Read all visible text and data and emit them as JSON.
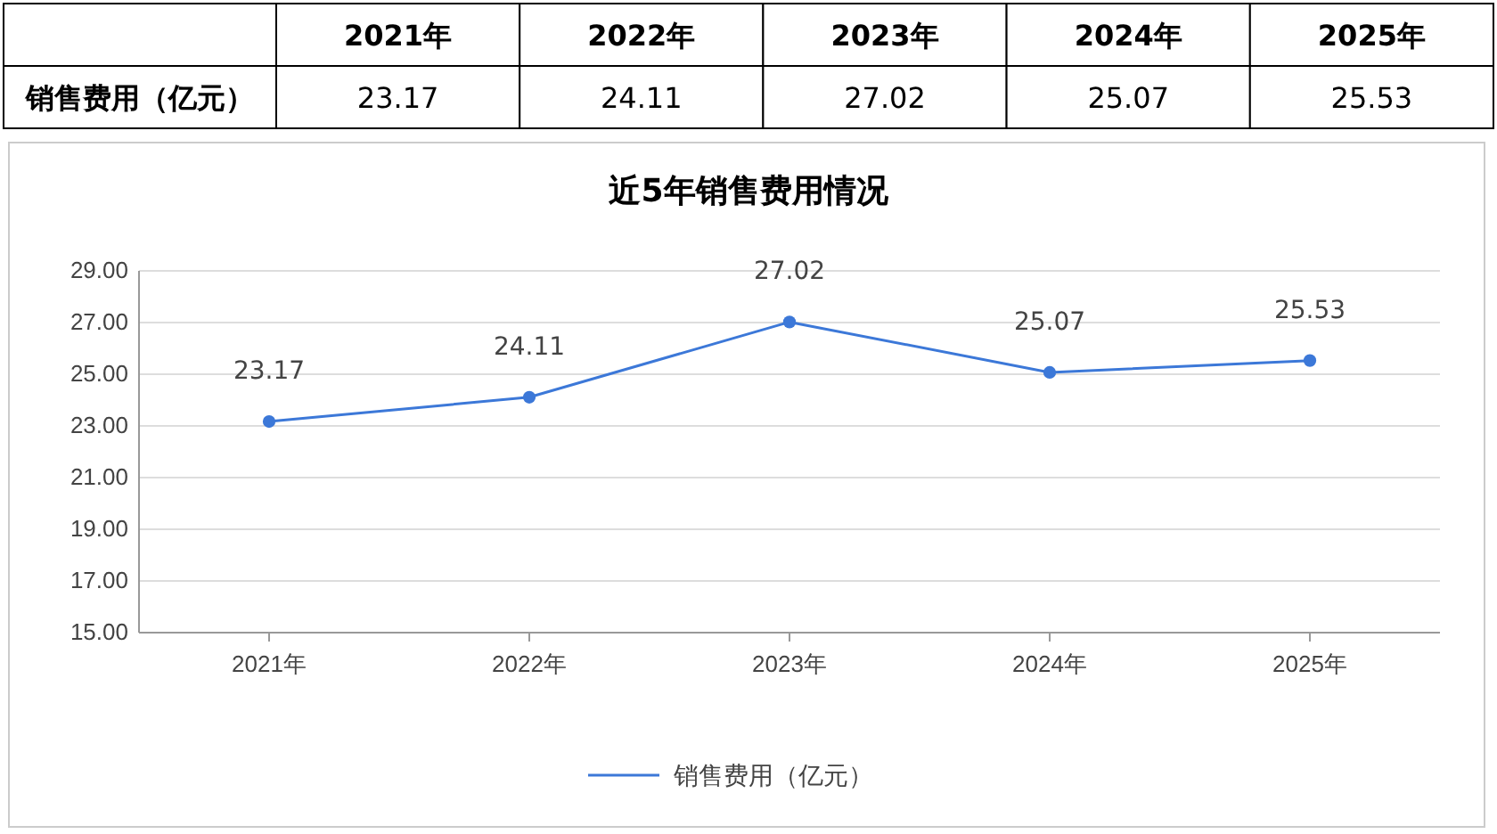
{
  "chart_data": {
    "type": "line",
    "title": "近5年销售费用情况",
    "categories": [
      "2021年",
      "2022年",
      "2023年",
      "2024年",
      "2025年"
    ],
    "series": [
      {
        "name": "销售费用（亿元）",
        "color": "#3c78d8",
        "values": [
          23.17,
          24.11,
          27.02,
          25.07,
          25.53
        ]
      }
    ],
    "ylim": [
      15,
      29
    ],
    "yticks": [
      {
        "value": 15,
        "label": "15.00"
      },
      {
        "value": 17,
        "label": "17.00"
      },
      {
        "value": 19,
        "label": "19.00"
      },
      {
        "value": 21,
        "label": "21.00"
      },
      {
        "value": 23,
        "label": "23.00"
      },
      {
        "value": 25,
        "label": "25.00"
      },
      {
        "value": 27,
        "label": "27.00"
      },
      {
        "value": 29,
        "label": "29.00"
      }
    ],
    "annotations": [
      {
        "text": "23.17",
        "x": "2021年",
        "y": 23.17
      },
      {
        "text": "24.11",
        "x": "2022年",
        "y": 24.11
      },
      {
        "text": "27.02",
        "x": "2023年",
        "y": 27.02
      },
      {
        "text": "25.07",
        "x": "2024年",
        "y": 25.07
      },
      {
        "text": "25.53",
        "x": "2025年",
        "y": 25.53
      }
    ],
    "grid": "y",
    "legend": "bottom",
    "marker": "circle",
    "line_style": "solid",
    "data_labels": true
  }
}
